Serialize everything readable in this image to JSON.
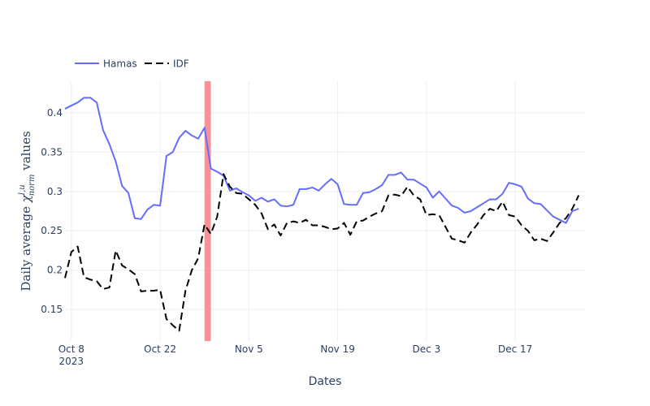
{
  "chart_data": {
    "type": "line",
    "xlabel": "Dates",
    "ylabel_main": "Daily average ",
    "ylabel_chi": "χ",
    "ylabel_sup": "l,u",
    "ylabel_sub": "norm",
    "ylabel_tail": " values",
    "x_start_date": "2023-10-07",
    "x_range": [
      "2023-10-07",
      "2023-12-28"
    ],
    "ylim": [
      0.11,
      0.44
    ],
    "grid": true,
    "legend_position": "top-left",
    "x_ticks": [
      {
        "date": "2023-10-08",
        "label": "Oct 8",
        "sublabel": "2023"
      },
      {
        "date": "2023-10-22",
        "label": "Oct 22",
        "sublabel": ""
      },
      {
        "date": "2023-11-05",
        "label": "Nov 5",
        "sublabel": ""
      },
      {
        "date": "2023-11-19",
        "label": "Nov 19",
        "sublabel": ""
      },
      {
        "date": "2023-12-03",
        "label": "Dec 3",
        "sublabel": ""
      },
      {
        "date": "2023-12-17",
        "label": "Dec 17",
        "sublabel": ""
      }
    ],
    "y_ticks": [
      0.15,
      0.2,
      0.25,
      0.3,
      0.35,
      0.4
    ],
    "y_tick_labels": [
      "0.15",
      "0.2",
      "0.25",
      "0.3",
      "0.35",
      "0.4"
    ],
    "highlight_band": {
      "start": "2023-10-29",
      "end": "2023-10-30",
      "color": "#f7919a"
    },
    "series": [
      {
        "name": "Hamas",
        "color": "#636efa",
        "dash": "solid",
        "values": [
          0.405,
          0.409,
          0.413,
          0.419,
          0.419,
          0.413,
          0.378,
          0.36,
          0.338,
          0.307,
          0.298,
          0.266,
          0.265,
          0.277,
          0.283,
          0.282,
          0.345,
          0.35,
          0.368,
          0.377,
          0.371,
          0.367,
          0.381,
          0.329,
          0.325,
          0.32,
          0.301,
          0.304,
          0.299,
          0.295,
          0.288,
          0.292,
          0.287,
          0.29,
          0.282,
          0.281,
          0.283,
          0.303,
          0.303,
          0.305,
          0.301,
          0.309,
          0.316,
          0.309,
          0.284,
          0.283,
          0.283,
          0.298,
          0.299,
          0.303,
          0.308,
          0.321,
          0.321,
          0.324,
          0.315,
          0.315,
          0.31,
          0.305,
          0.292,
          0.3,
          0.291,
          0.282,
          0.279,
          0.273,
          0.275,
          0.28,
          0.285,
          0.29,
          0.29,
          0.297,
          0.311,
          0.309,
          0.306,
          0.291,
          0.285,
          0.284,
          0.276,
          0.268,
          0.264,
          0.26,
          0.275,
          0.278
        ]
      },
      {
        "name": "IDF",
        "color": "#000000",
        "dash": "dash",
        "values": [
          0.19,
          0.223,
          0.23,
          0.191,
          0.188,
          0.186,
          0.176,
          0.178,
          0.225,
          0.206,
          0.201,
          0.195,
          0.173,
          0.174,
          0.174,
          0.175,
          0.138,
          0.13,
          0.123,
          0.174,
          0.2,
          0.215,
          0.258,
          0.246,
          0.268,
          0.322,
          0.306,
          0.298,
          0.297,
          0.29,
          0.283,
          0.272,
          0.252,
          0.258,
          0.244,
          0.26,
          0.262,
          0.26,
          0.264,
          0.257,
          0.257,
          0.255,
          0.252,
          0.253,
          0.26,
          0.245,
          0.262,
          0.263,
          0.268,
          0.272,
          0.275,
          0.295,
          0.296,
          0.294,
          0.306,
          0.295,
          0.29,
          0.27,
          0.271,
          0.27,
          0.255,
          0.24,
          0.238,
          0.235,
          0.248,
          0.258,
          0.27,
          0.278,
          0.275,
          0.287,
          0.27,
          0.268,
          0.257,
          0.25,
          0.238,
          0.24,
          0.237,
          0.248,
          0.26,
          0.266,
          0.278,
          0.295
        ]
      }
    ]
  }
}
